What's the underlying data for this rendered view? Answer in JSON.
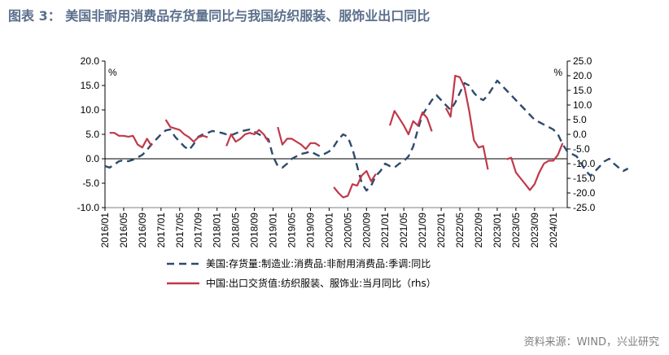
{
  "figure": {
    "title": "图表 3：  美国非耐用消费品存货量同比与我国纺织服装、服饰业出口同比",
    "source": "资料来源：WIND，兴业研究"
  },
  "colors": {
    "title": "#5b6f8c",
    "us_series": "#2f4a6d",
    "china_series": "#c0394a",
    "source": "#7f7f7f"
  },
  "chart_data": {
    "type": "line",
    "left_axis": {
      "unit": "%",
      "ylim": [
        -10,
        20
      ],
      "ticks": [
        "20.0",
        "15.0",
        "10.0",
        "5.0",
        "0.0",
        "-5.0",
        "-10.0"
      ],
      "tick_values": [
        20,
        15,
        10,
        5,
        0,
        -5,
        -10
      ]
    },
    "right_axis": {
      "unit": "%",
      "ylim": [
        -25,
        25
      ],
      "ticks": [
        "25.0",
        "20.0",
        "15.0",
        "10.0",
        "5.0",
        "0.0",
        "-5.0",
        "-10.0",
        "-15.0",
        "-20.0",
        "-25.0"
      ],
      "tick_values": [
        25,
        20,
        15,
        10,
        5,
        0,
        -5,
        -10,
        -15,
        -20,
        -25
      ]
    },
    "x_ticks": [
      "2016/01",
      "2016/05",
      "2016/09",
      "2017/01",
      "2017/05",
      "2017/09",
      "2018/01",
      "2018/05",
      "2018/09",
      "2019/01",
      "2019/05",
      "2019/09",
      "2020/01",
      "2020/05",
      "2020/09",
      "2021/01",
      "2021/05",
      "2021/09",
      "2022/01",
      "2022/05",
      "2022/09",
      "2023/01",
      "2023/05",
      "2023/09",
      "2024/01"
    ],
    "x_start": "2016/01",
    "legend_position": "bottom",
    "series": [
      {
        "name": "美国:存货量:制造业:消费品:非耐用消费品:季调:同比",
        "axis": "left",
        "style": "dashed",
        "segments": [
          {
            "start": "2016/01",
            "values": [
              -1.5,
              -1.8,
              -1.2,
              -0.5,
              -0.3,
              -0.5,
              -0.2,
              0.3,
              0.8,
              1.8,
              3.0,
              4.0,
              5.0,
              5.8,
              6.0,
              4.5,
              3.5,
              2.5,
              1.8,
              3.0,
              4.5,
              5.0,
              5.3,
              5.7,
              5.5,
              5.3,
              5.0,
              4.8,
              5.2,
              5.6,
              5.8,
              6.0,
              5.5,
              5.0,
              4.5,
              4.0,
              0.5,
              -1.5,
              -1.8,
              -1.0,
              0.0,
              0.5,
              1.0,
              1.2,
              1.5,
              1.0,
              0.5,
              1.0,
              1.5,
              2.5,
              4.0,
              5.0,
              4.5,
              2.0,
              -1.5,
              -5.0,
              -6.5,
              -5.5,
              -3.5,
              -2.5,
              -1.0,
              -1.5,
              -1.8,
              -1.0,
              -0.5,
              0.5,
              2.5,
              6.0,
              9.0,
              10.5,
              12.0,
              13.0,
              12.0,
              11.0,
              10.0,
              11.5,
              13.5,
              15.5,
              15.0,
              13.5,
              12.5,
              12.0,
              13.0,
              14.5,
              16.0,
              15.0,
              14.0,
              13.0,
              12.0,
              11.0,
              10.0,
              9.0,
              8.0,
              7.5,
              7.0,
              6.5,
              6.0,
              5.0,
              3.0,
              1.5,
              1.0,
              0.5,
              -1.0,
              -2.5,
              -3.5,
              -2.5,
              -1.5,
              -0.5,
              0.0,
              -1.0,
              -1.8,
              -2.5,
              -2.0
            ]
          }
        ]
      },
      {
        "name": "中国:出口交货值:纺织服装、服饰业:当月同比（rhs）",
        "axis": "right",
        "style": "solid",
        "segments": [
          {
            "start": "2016/02",
            "values": [
              0.5,
              0.5,
              -0.5,
              -0.5,
              -0.8,
              -0.5,
              -3.5,
              -4.5,
              -1.5,
              -4.0
            ]
          },
          {
            "start": "2017/02",
            "values": [
              5.0,
              2.5,
              2.0,
              1.5,
              0.0,
              -1.0,
              -2.5,
              -1.0,
              -0.5,
              -1.0
            ]
          },
          {
            "start": "2018/03",
            "values": [
              -4.0,
              0.0,
              -2.5,
              -1.5,
              0.0,
              0.5,
              0.0,
              1.5,
              0.0,
              -2.5
            ]
          },
          {
            "start": "2019/02",
            "values": [
              2.5,
              -3.5,
              -1.5,
              -1.5,
              -2.5,
              -3.5,
              -5.0,
              -3.0,
              -3.0,
              -4.0
            ]
          },
          {
            "start": "2020/02",
            "values": [
              -18.0,
              -20.0,
              -21.5,
              -21.0,
              -17.0,
              -17.5,
              -14.0,
              -12.5,
              -16.0,
              -13.5
            ]
          },
          {
            "start": "2021/02",
            "values": [
              3.0,
              8.0,
              5.5,
              3.0,
              0.0,
              4.5,
              3.0,
              7.5,
              5.5,
              1.0
            ]
          },
          {
            "start": "2022/02",
            "values": [
              9.0,
              6.0,
              20.0,
              19.5,
              16.0,
              8.0,
              -2.0,
              -4.5,
              -4.0,
              -12.0
            ]
          },
          {
            "start": "2023/03",
            "values": [
              -8.5,
              -8.0,
              -13.0,
              -15.0,
              -17.0,
              -19.0,
              -17.0,
              -13.0,
              -10.0,
              -9.0,
              -9.0,
              -7.0,
              -3.0
            ]
          }
        ]
      }
    ]
  }
}
